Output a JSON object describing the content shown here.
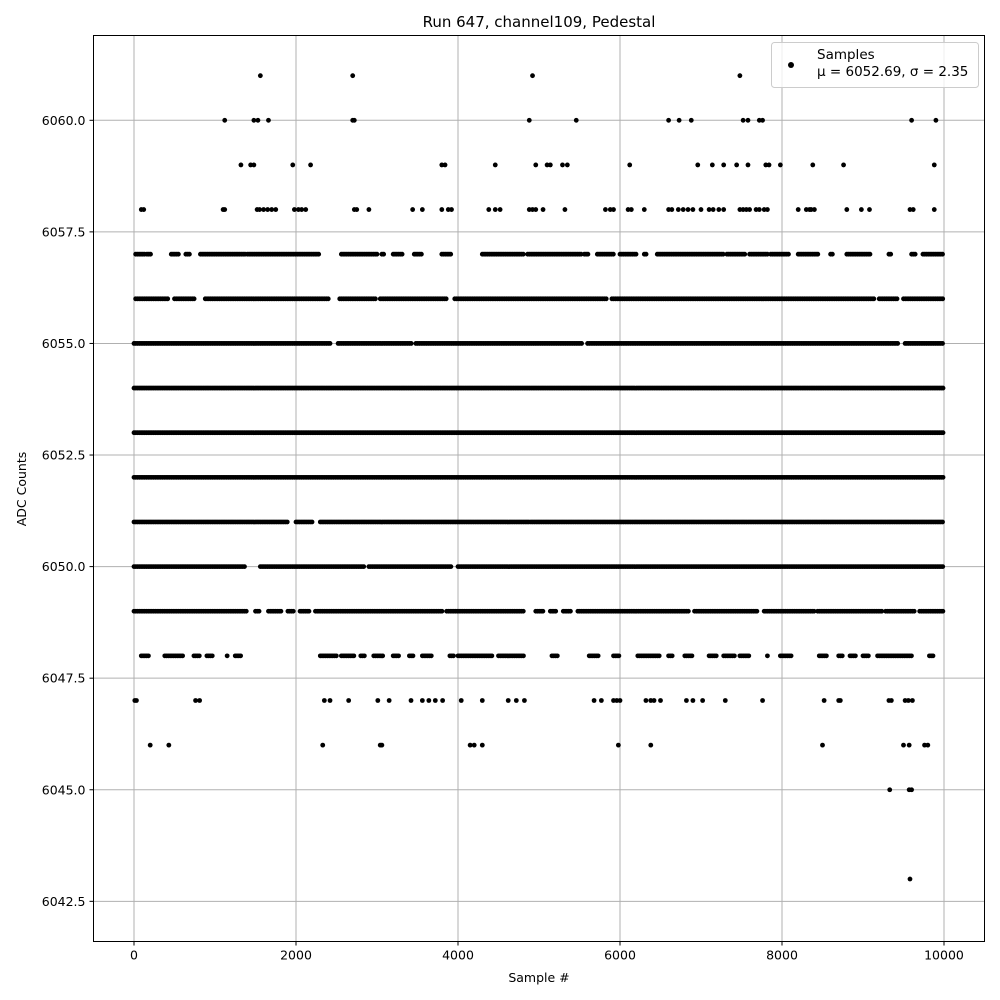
{
  "chart_data": {
    "type": "scatter",
    "title": "Run 647, channel109, Pedestal",
    "xlabel": "Sample #",
    "ylabel": "ADC Counts",
    "xlim": [
      -500,
      10500
    ],
    "ylim": [
      6041.6,
      6061.9
    ],
    "xticks": [
      0,
      2000,
      4000,
      6000,
      8000,
      10000
    ],
    "yticks": [
      6042.5,
      6045.0,
      6047.5,
      6050.0,
      6052.5,
      6055.0,
      6057.5,
      6060.0
    ],
    "xtick_labels": [
      "0",
      "2000",
      "4000",
      "6000",
      "8000",
      "10000"
    ],
    "ytick_labels": [
      "6042.5",
      "6045.0",
      "6047.5",
      "6050.0",
      "6052.5",
      "6055.0",
      "6057.5",
      "6060.0"
    ],
    "grid": true,
    "legend": {
      "position": "top-right",
      "entries": [
        {
          "label": "Samples",
          "label2": "μ = 6052.69, σ = 2.35"
        }
      ]
    },
    "series": [
      {
        "name": "Samples",
        "color": "#000000",
        "marker": "circle",
        "n_samples": 10000,
        "mean": 6052.69,
        "sigma": 2.35,
        "levels": [
          {
            "y": 6043,
            "x": [
              9580
            ]
          },
          {
            "y": 6045,
            "x": [
              9330,
              9570,
              9600
            ]
          },
          {
            "y": 6046,
            "x": [
              200,
              430,
              2330,
              3040,
              3060,
              4150,
              4200,
              4300,
              5980,
              6380,
              8500,
              9500,
              9570,
              9760,
              9800
            ]
          },
          {
            "y": 6047,
            "x": [
              10,
              30,
              760,
              810,
              2350,
              2420,
              2650,
              3010,
              3150,
              3420,
              3560,
              3640,
              3720,
              3810,
              4040,
              4300,
              4620,
              4720,
              4820,
              5680,
              5770,
              5920,
              5960,
              6000,
              6320,
              6380,
              6420,
              6500,
              6820,
              6900,
              7020,
              7300,
              7760,
              8520,
              8700,
              8720,
              9320,
              9350,
              9520,
              9560,
              9610
            ]
          },
          {
            "y": 6048,
            "segments": [
              [
                90,
                180
              ],
              [
                380,
                600
              ],
              [
                740,
                810
              ],
              [
                900,
                980
              ],
              [
                1150,
                1170
              ],
              [
                1250,
                1330
              ],
              [
                2300,
                2500
              ],
              [
                2560,
                2720
              ],
              [
                2800,
                2860
              ],
              [
                2960,
                3080
              ],
              [
                3200,
                3280
              ],
              [
                3400,
                3460
              ],
              [
                3560,
                3680
              ],
              [
                3900,
                3960
              ],
              [
                4000,
                4420
              ],
              [
                4500,
                4820
              ],
              [
                5160,
                5240
              ],
              [
                5620,
                5740
              ],
              [
                5920,
                6000
              ],
              [
                6220,
                6500
              ],
              [
                6600,
                6660
              ],
              [
                6800,
                6900
              ],
              [
                7100,
                7200
              ],
              [
                7280,
                7420
              ],
              [
                7480,
                7600
              ],
              [
                7820,
                7840
              ],
              [
                7980,
                8120
              ],
              [
                8460,
                8560
              ],
              [
                8700,
                8760
              ],
              [
                8840,
                8920
              ],
              [
                9000,
                9080
              ],
              [
                9180,
                9600
              ],
              [
                9820,
                9880
              ]
            ]
          },
          {
            "y": 6049,
            "segments": [
              [
                0,
                1400
              ],
              [
                1500,
                1560
              ],
              [
                1660,
                1820
              ],
              [
                1900,
                1980
              ],
              [
                2050,
                2180
              ],
              [
                2240,
                3820
              ],
              [
                3860,
                4820
              ],
              [
                4960,
                5060
              ],
              [
                5140,
                5220
              ],
              [
                5300,
                5400
              ],
              [
                5480,
                6860
              ],
              [
                6920,
                7700
              ],
              [
                7780,
                8400
              ],
              [
                8440,
                9240
              ],
              [
                9280,
                9640
              ],
              [
                9700,
                10000
              ]
            ]
          },
          {
            "y": 6050,
            "segments": [
              [
                0,
                1380
              ],
              [
                1560,
                2840
              ],
              [
                2900,
                3920
              ],
              [
                4000,
                10000
              ]
            ]
          },
          {
            "y": 6051,
            "segments": [
              [
                0,
                1900
              ],
              [
                2000,
                2200
              ],
              [
                2300,
                4880
              ],
              [
                4900,
                10000
              ]
            ]
          },
          {
            "y": 6052,
            "segments": [
              [
                0,
                10000
              ]
            ]
          },
          {
            "y": 6053,
            "segments": [
              [
                0,
                10000
              ]
            ]
          },
          {
            "y": 6054,
            "segments": [
              [
                0,
                10000
              ]
            ]
          },
          {
            "y": 6055,
            "segments": [
              [
                0,
                2440
              ],
              [
                2520,
                3440
              ],
              [
                3480,
                5540
              ],
              [
                5600,
                9440
              ],
              [
                9520,
                10000
              ]
            ]
          },
          {
            "y": 6056,
            "segments": [
              [
                20,
                420
              ],
              [
                500,
                760
              ],
              [
                880,
                2400
              ],
              [
                2540,
                2980
              ],
              [
                3040,
                3860
              ],
              [
                3960,
                5840
              ],
              [
                5900,
                9140
              ],
              [
                9200,
                9420
              ],
              [
                9500,
                10000
              ]
            ]
          },
          {
            "y": 6057,
            "segments": [
              [
                20,
                130
              ],
              [
                160,
                220
              ],
              [
                460,
                560
              ],
              [
                640,
                700
              ],
              [
                820,
                1380
              ],
              [
                1400,
                2300
              ],
              [
                2560,
                3000
              ],
              [
                3060,
                3100
              ],
              [
                3200,
                3320
              ],
              [
                3460,
                3560
              ],
              [
                3800,
                3920
              ],
              [
                4300,
                4820
              ],
              [
                4860,
                5540
              ],
              [
                5560,
                5620
              ],
              [
                5720,
                5920
              ],
              [
                6000,
                6200
              ],
              [
                6300,
                6340
              ],
              [
                6460,
                7280
              ],
              [
                7320,
                7540
              ],
              [
                7600,
                7820
              ],
              [
                7860,
                8100
              ],
              [
                8200,
                8460
              ],
              [
                8600,
                8640
              ],
              [
                8800,
                9100
              ],
              [
                9320,
                9360
              ],
              [
                9600,
                9660
              ],
              [
                9740,
                10000
              ]
            ]
          }
        ],
        "outliers": [
          {
            "y": 6058,
            "x": [
              90,
              120,
              1100,
              1120,
              1520,
              1550,
              1600,
              1650,
              1700,
              1750,
              1980,
              2030,
              2070,
              2120,
              2720,
              2750,
              2900,
              3440,
              3560,
              3800,
              3880,
              3920,
              4380,
              4460,
              4520,
              4880,
              4920,
              4960,
              5050,
              5320,
              5820,
              5880,
              5920,
              6100,
              6140,
              6300,
              6600,
              6640,
              6720,
              6780,
              6840,
              6900,
              7000,
              7100,
              7150,
              7220,
              7280,
              7480,
              7520,
              7560,
              7600,
              7680,
              7720,
              7780,
              7820,
              8200,
              8300,
              8340,
              8360,
              8400,
              8800,
              8980,
              9080,
              9580,
              9620,
              9880
            ]
          },
          {
            "y": 6059,
            "x": [
              1320,
              1440,
              1480,
              1960,
              2180,
              3800,
              3840,
              4460,
              4960,
              5100,
              5140,
              5290,
              5350,
              6120,
              6960,
              7140,
              7280,
              7440,
              7580,
              7800,
              7840,
              7980,
              8380,
              8760,
              9880
            ]
          },
          {
            "y": 6060,
            "x": [
              1120,
              1480,
              1530,
              1660,
              2700,
              2720,
              4880,
              5460,
              6600,
              6730,
              6880,
              7520,
              7580,
              7720,
              7760,
              9600,
              9900
            ]
          },
          {
            "y": 6061,
            "x": [
              1560,
              2700,
              4920,
              7480
            ]
          }
        ]
      }
    ]
  }
}
